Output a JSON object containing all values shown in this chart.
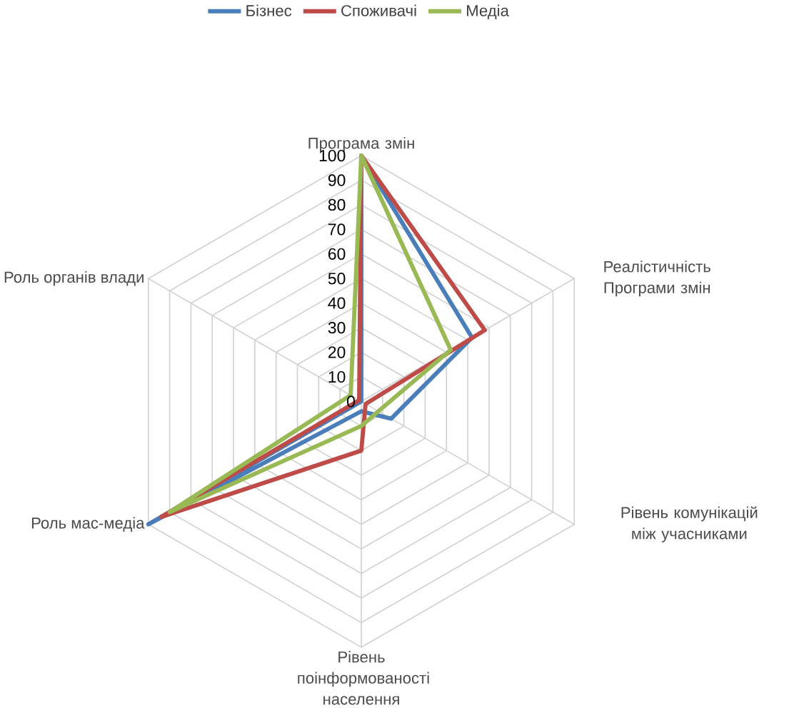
{
  "chart_data": {
    "type": "radar",
    "categories": [
      "Програма змін",
      "Реалістичність Програми змін",
      "Рівень комунікацій між учасниками",
      "Рівень поінформованості населення",
      "Роль мас-медіа",
      "Роль органів влади"
    ],
    "series": [
      {
        "name": "Бізнес",
        "color": "#4a7ebb",
        "values": [
          100,
          52,
          14,
          4,
          100,
          0
        ]
      },
      {
        "name": "Споживачі",
        "color": "#be4b48",
        "values": [
          100,
          58,
          2,
          20,
          94,
          1
        ]
      },
      {
        "name": "Медіа",
        "color": "#98b954",
        "values": [
          100,
          42,
          8,
          10,
          90,
          5
        ]
      }
    ],
    "ylim": [
      0,
      100
    ],
    "yticks": [
      0,
      10,
      20,
      30,
      40,
      50,
      60,
      70,
      80,
      90,
      100
    ],
    "grid": true,
    "legend": "top"
  }
}
